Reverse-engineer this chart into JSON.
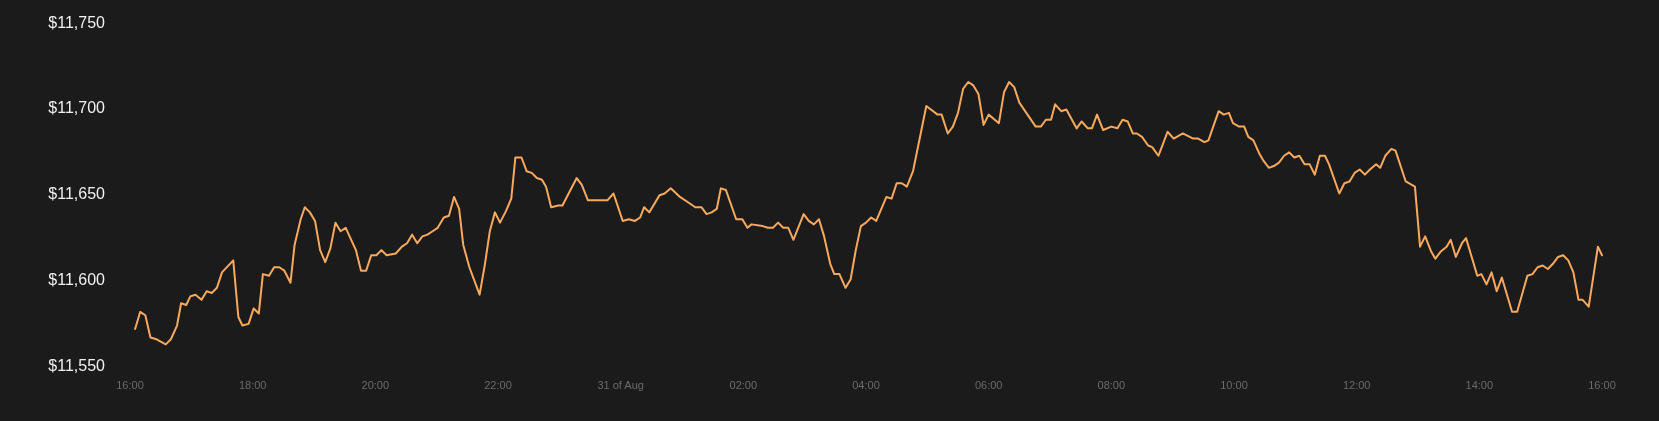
{
  "chart_data": {
    "type": "line",
    "x": [
      "--08-30T16:05",
      "--08-30T16:10",
      "--08-30T16:15",
      "--08-30T16:20",
      "--08-30T16:26",
      "--08-30T16:35",
      "--08-30T16:40",
      "--08-30T16:46",
      "--08-30T16:50",
      "--08-30T16:55",
      "--08-30T16:59",
      "--08-30T17:04",
      "--08-30T17:10",
      "--08-30T17:15",
      "--08-30T17:20",
      "--08-30T17:25",
      "--08-30T17:30",
      "--08-30T17:41",
      "--08-30T17:46",
      "--08-30T17:50",
      "--08-30T17:56",
      "--08-30T18:01",
      "--08-30T18:06",
      "--08-30T18:10",
      "--08-30T18:16",
      "--08-30T18:21",
      "--08-30T18:26",
      "--08-30T18:31",
      "--08-30T18:37",
      "--08-30T18:41",
      "--08-30T18:47",
      "--08-30T18:51",
      "--08-30T18:56",
      "--08-30T19:01",
      "--08-30T19:06",
      "--08-30T19:11",
      "--08-30T19:16",
      "--08-30T19:21",
      "--08-30T19:26",
      "--08-30T19:31",
      "--08-30T19:41",
      "--08-30T19:46",
      "--08-30T19:51",
      "--08-30T19:56",
      "--08-30T20:01",
      "--08-30T20:06",
      "--08-30T20:11",
      "--08-30T20:20",
      "--08-30T20:26",
      "--08-30T20:31",
      "--08-30T20:36",
      "--08-30T20:41",
      "--08-30T20:46",
      "--08-30T20:51",
      "--08-30T20:56",
      "--08-30T21:01",
      "--08-30T21:07",
      "--08-30T21:12",
      "--08-30T21:17",
      "--08-30T21:22",
      "--08-30T21:26",
      "--08-30T21:32",
      "--08-30T21:42",
      "--08-30T21:47",
      "--08-30T21:52",
      "--08-30T21:57",
      "--08-30T22:02",
      "--08-30T22:08",
      "--08-30T22:13",
      "--08-30T22:17",
      "--08-30T22:23",
      "--08-30T22:28",
      "--08-30T22:33",
      "--08-30T22:38",
      "--08-30T22:43",
      "--08-30T22:47",
      "--08-30T22:52",
      "--08-30T22:59",
      "--08-30T23:03",
      "--08-30T23:17",
      "--08-30T23:22",
      "--08-30T23:28",
      "--08-30T23:47",
      "--08-30T23:53",
      "--08-31T00:02",
      "--08-31T00:08",
      "--08-31T00:14",
      "--08-31T00:19",
      "--08-31T00:23",
      "--08-31T00:28",
      "--08-31T00:38",
      "--08-31T00:43",
      "--08-31T00:49",
      "--08-31T00:58",
      "--08-31T01:08",
      "--08-31T01:13",
      "--08-31T01:19",
      "--08-31T01:24",
      "--08-31T01:29",
      "--08-31T01:34",
      "--08-31T01:38",
      "--08-31T01:43",
      "--08-31T01:53",
      "--08-31T01:59",
      "--08-31T02:04",
      "--08-31T02:08",
      "--08-31T02:19",
      "--08-31T02:24",
      "--08-31T02:29",
      "--08-31T02:34",
      "--08-31T02:39",
      "--08-31T02:44",
      "--08-31T02:49",
      "--08-31T02:59",
      "--08-31T03:04",
      "--08-31T03:09",
      "--08-31T03:14",
      "--08-31T03:19",
      "--08-31T03:25",
      "--08-31T03:29",
      "--08-31T03:34",
      "--08-31T03:40",
      "--08-31T03:45",
      "--08-31T03:50",
      "--08-31T03:55",
      "--08-31T04:00",
      "--08-31T04:05",
      "--08-31T04:10",
      "--08-31T04:20",
      "--08-31T04:25",
      "--08-31T04:30",
      "--08-31T04:35",
      "--08-31T04:40",
      "--08-31T04:46",
      "--08-31T04:59",
      "--08-31T05:10",
      "--08-31T05:14",
      "--08-31T05:20",
      "--08-31T05:25",
      "--08-31T05:30",
      "--08-31T05:35",
      "--08-31T05:40",
      "--08-31T05:45",
      "--08-31T05:50",
      "--08-31T05:55",
      "--08-31T06:00",
      "--08-31T06:10",
      "--08-31T06:15",
      "--08-31T06:20",
      "--08-31T06:25",
      "--08-31T06:30",
      "--08-31T06:46",
      "--08-31T06:51",
      "--08-31T06:56",
      "--08-31T07:01",
      "--08-31T07:05",
      "--08-31T07:11",
      "--08-31T07:16",
      "--08-31T07:26",
      "--08-31T07:31",
      "--08-31T07:37",
      "--08-31T07:41",
      "--08-31T07:46",
      "--08-31T07:52",
      "--08-31T08:00",
      "--08-31T08:06",
      "--08-31T08:11",
      "--08-31T08:16",
      "--08-31T08:21",
      "--08-31T08:25",
      "--08-31T08:30",
      "--08-31T08:36",
      "--08-31T08:40",
      "--08-31T08:46",
      "--08-31T08:50",
      "--08-31T08:55",
      "--08-31T09:01",
      "--08-31T09:10",
      "--08-31T09:20",
      "--08-31T09:25",
      "--08-31T09:31",
      "--08-31T09:35",
      "--08-31T09:45",
      "--08-31T09:50",
      "--08-31T09:55",
      "--08-31T09:59",
      "--08-31T10:05",
      "--08-31T10:10",
      "--08-31T10:14",
      "--08-31T10:19",
      "--08-31T10:25",
      "--08-31T10:29",
      "--08-31T10:34",
      "--08-31T10:39",
      "--08-31T10:44",
      "--08-31T10:49",
      "--08-31T10:54",
      "--08-31T10:59",
      "--08-31T11:04",
      "--08-31T11:09",
      "--08-31T11:14",
      "--08-31T11:19",
      "--08-31T11:24",
      "--08-31T11:29",
      "--08-31T11:33",
      "--08-31T11:43",
      "--08-31T11:48",
      "--08-31T11:53",
      "--08-31T11:58",
      "--08-31T12:03",
      "--08-31T12:08",
      "--08-31T12:13",
      "--08-31T12:19",
      "--08-31T12:23",
      "--08-31T12:28",
      "--08-31T12:34",
      "--08-31T12:38",
      "--08-31T12:48",
      "--08-31T12:57",
      "--08-31T13:02",
      "--08-31T13:07",
      "--08-31T13:13",
      "--08-31T13:17",
      "--08-31T13:22",
      "--08-31T13:28",
      "--08-31T13:32",
      "--08-31T13:37",
      "--08-31T13:43",
      "--08-31T13:47",
      "--08-31T13:58",
      "--08-31T14:02",
      "--08-31T14:07",
      "--08-31T14:12",
      "--08-31T14:17",
      "--08-31T14:22",
      "--08-31T14:32",
      "--08-31T14:37",
      "--08-31T14:47",
      "--08-31T14:52",
      "--08-31T14:57",
      "--08-31T15:02",
      "--08-31T15:07",
      "--08-31T15:12",
      "--08-31T15:17",
      "--08-31T15:22",
      "--08-31T15:27",
      "--08-31T15:32",
      "--08-31T15:37",
      "--08-31T15:41",
      "--08-31T15:47",
      "--08-31T15:56",
      "--08-31T16:00"
    ],
    "series": [
      {
        "color": "#f9a95c",
        "values": [
          11571,
          11581,
          11579,
          11566,
          11565,
          11562,
          11565,
          11573,
          11586,
          11585,
          11590,
          11591,
          11588,
          11593,
          11592,
          11595,
          11604,
          11611,
          11578,
          11573,
          11574,
          11583,
          11580,
          11603,
          11602,
          11607,
          11607,
          11605,
          11598,
          11620,
          11635,
          11642,
          11639,
          11634,
          11617,
          11610,
          11618,
          11633,
          11628,
          11630,
          11617,
          11605,
          11605,
          11614,
          11614,
          11617,
          11614,
          11615,
          11619,
          11621,
          11626,
          11621,
          11625,
          11626,
          11628,
          11630,
          11636,
          11637,
          11648,
          11641,
          11620,
          11607,
          11591,
          11608,
          11628,
          11639,
          11633,
          11640,
          11647,
          11671,
          11671,
          11663,
          11662,
          11659,
          11658,
          11654,
          11642,
          11643,
          11643,
          11659,
          11655,
          11646,
          11646,
          11650,
          11634,
          11635,
          11634,
          11636,
          11642,
          11639,
          11649,
          11650,
          11653,
          11648,
          11644,
          11642,
          11642,
          11638,
          11639,
          11641,
          11653,
          11652,
          11635,
          11635,
          11630,
          11632,
          11631,
          11630,
          11630,
          11633,
          11630,
          11630,
          11623,
          11638,
          11634,
          11632,
          11635,
          11625,
          11609,
          11603,
          11603,
          11595,
          11600,
          11617,
          11631,
          11633,
          11636,
          11634,
          11648,
          11647,
          11656,
          11656,
          11654,
          11663,
          11701,
          11696,
          11696,
          11685,
          11689,
          11697,
          11711,
          11715,
          11713,
          11708,
          11690,
          11696,
          11691,
          11709,
          11715,
          11712,
          11703,
          11689,
          11689,
          11693,
          11693,
          11702,
          11698,
          11699,
          11688,
          11692,
          11688,
          11688,
          11696,
          11687,
          11689,
          11688,
          11693,
          11692,
          11685,
          11685,
          11683,
          11678,
          11677,
          11672,
          11678,
          11686,
          11682,
          11685,
          11682,
          11682,
          11680,
          11681,
          11698,
          11696,
          11697,
          11691,
          11689,
          11689,
          11683,
          11681,
          11673,
          11669,
          11665,
          11666,
          11668,
          11672,
          11674,
          11671,
          11672,
          11667,
          11667,
          11661,
          11672,
          11672,
          11667,
          11650,
          11656,
          11657,
          11662,
          11664,
          11661,
          11664,
          11667,
          11665,
          11672,
          11676,
          11675,
          11657,
          11654,
          11619,
          11625,
          11616,
          11612,
          11616,
          11619,
          11623,
          11613,
          11621,
          11624,
          11602,
          11603,
          11597,
          11604,
          11593,
          11601,
          11581,
          11581,
          11602,
          11603,
          11607,
          11608,
          11606,
          11609,
          11613,
          11614,
          11611,
          11604,
          11588,
          11588,
          11584,
          11619,
          11614
        ]
      }
    ],
    "xlim": [
      "--08-30T16:00",
      "--08-31T16:00"
    ],
    "xticks": [
      {
        "value": "--08-30T16:00",
        "label": "16:00"
      },
      {
        "value": "--08-30T18:00",
        "label": "18:00"
      },
      {
        "value": "--08-30T20:00",
        "label": "20:00"
      },
      {
        "value": "--08-30T22:00",
        "label": "22:00"
      },
      {
        "value": "--08-31T00:00",
        "label": "31 of Aug"
      },
      {
        "value": "--08-31T02:00",
        "label": "02:00"
      },
      {
        "value": "--08-31T04:00",
        "label": "04:00"
      },
      {
        "value": "--08-31T06:00",
        "label": "06:00"
      },
      {
        "value": "--08-31T08:00",
        "label": "08:00"
      },
      {
        "value": "--08-31T10:00",
        "label": "10:00"
      },
      {
        "value": "--08-31T12:00",
        "label": "12:00"
      },
      {
        "value": "--08-31T14:00",
        "label": "14:00"
      },
      {
        "value": "--08-31T16:00",
        "label": "16:00"
      }
    ],
    "ylim": [
      11550,
      11750
    ],
    "yticks": [
      {
        "value": 11550,
        "label": "$11,550"
      },
      {
        "value": 11600,
        "label": "$11,600"
      },
      {
        "value": 11650,
        "label": "$11,650"
      },
      {
        "value": 11700,
        "label": "$11,700"
      },
      {
        "value": 11750,
        "label": "$11,750"
      }
    ],
    "grid": false,
    "marker": "none",
    "line_style": "solid"
  }
}
